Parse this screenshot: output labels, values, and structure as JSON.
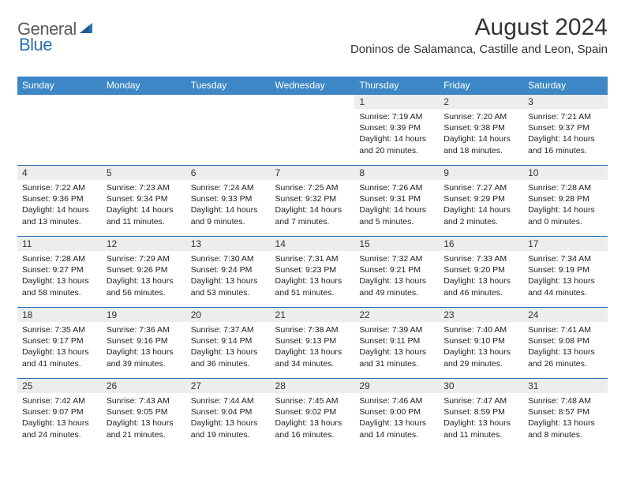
{
  "logo": {
    "text1": "General",
    "text2": "Blue"
  },
  "title": "August 2024",
  "location": "Doninos de Salamanca, Castille and Leon, Spain",
  "colors": {
    "header_bg": "#3d87c7",
    "header_text": "#ffffff",
    "daynum_bg": "#eceded",
    "border": "#2a6fb0",
    "logo_gray": "#5a5a5a",
    "logo_blue": "#2a6fb0"
  },
  "weekdays": [
    "Sunday",
    "Monday",
    "Tuesday",
    "Wednesday",
    "Thursday",
    "Friday",
    "Saturday"
  ],
  "weeks": [
    [
      null,
      null,
      null,
      null,
      {
        "n": "1",
        "sr": "7:19 AM",
        "ss": "9:39 PM",
        "dl": "14 hours and 20 minutes."
      },
      {
        "n": "2",
        "sr": "7:20 AM",
        "ss": "9:38 PM",
        "dl": "14 hours and 18 minutes."
      },
      {
        "n": "3",
        "sr": "7:21 AM",
        "ss": "9:37 PM",
        "dl": "14 hours and 16 minutes."
      }
    ],
    [
      {
        "n": "4",
        "sr": "7:22 AM",
        "ss": "9:36 PM",
        "dl": "14 hours and 13 minutes."
      },
      {
        "n": "5",
        "sr": "7:23 AM",
        "ss": "9:34 PM",
        "dl": "14 hours and 11 minutes."
      },
      {
        "n": "6",
        "sr": "7:24 AM",
        "ss": "9:33 PM",
        "dl": "14 hours and 9 minutes."
      },
      {
        "n": "7",
        "sr": "7:25 AM",
        "ss": "9:32 PM",
        "dl": "14 hours and 7 minutes."
      },
      {
        "n": "8",
        "sr": "7:26 AM",
        "ss": "9:31 PM",
        "dl": "14 hours and 5 minutes."
      },
      {
        "n": "9",
        "sr": "7:27 AM",
        "ss": "9:29 PM",
        "dl": "14 hours and 2 minutes."
      },
      {
        "n": "10",
        "sr": "7:28 AM",
        "ss": "9:28 PM",
        "dl": "14 hours and 0 minutes."
      }
    ],
    [
      {
        "n": "11",
        "sr": "7:28 AM",
        "ss": "9:27 PM",
        "dl": "13 hours and 58 minutes."
      },
      {
        "n": "12",
        "sr": "7:29 AM",
        "ss": "9:26 PM",
        "dl": "13 hours and 56 minutes."
      },
      {
        "n": "13",
        "sr": "7:30 AM",
        "ss": "9:24 PM",
        "dl": "13 hours and 53 minutes."
      },
      {
        "n": "14",
        "sr": "7:31 AM",
        "ss": "9:23 PM",
        "dl": "13 hours and 51 minutes."
      },
      {
        "n": "15",
        "sr": "7:32 AM",
        "ss": "9:21 PM",
        "dl": "13 hours and 49 minutes."
      },
      {
        "n": "16",
        "sr": "7:33 AM",
        "ss": "9:20 PM",
        "dl": "13 hours and 46 minutes."
      },
      {
        "n": "17",
        "sr": "7:34 AM",
        "ss": "9:19 PM",
        "dl": "13 hours and 44 minutes."
      }
    ],
    [
      {
        "n": "18",
        "sr": "7:35 AM",
        "ss": "9:17 PM",
        "dl": "13 hours and 41 minutes."
      },
      {
        "n": "19",
        "sr": "7:36 AM",
        "ss": "9:16 PM",
        "dl": "13 hours and 39 minutes."
      },
      {
        "n": "20",
        "sr": "7:37 AM",
        "ss": "9:14 PM",
        "dl": "13 hours and 36 minutes."
      },
      {
        "n": "21",
        "sr": "7:38 AM",
        "ss": "9:13 PM",
        "dl": "13 hours and 34 minutes."
      },
      {
        "n": "22",
        "sr": "7:39 AM",
        "ss": "9:11 PM",
        "dl": "13 hours and 31 minutes."
      },
      {
        "n": "23",
        "sr": "7:40 AM",
        "ss": "9:10 PM",
        "dl": "13 hours and 29 minutes."
      },
      {
        "n": "24",
        "sr": "7:41 AM",
        "ss": "9:08 PM",
        "dl": "13 hours and 26 minutes."
      }
    ],
    [
      {
        "n": "25",
        "sr": "7:42 AM",
        "ss": "9:07 PM",
        "dl": "13 hours and 24 minutes."
      },
      {
        "n": "26",
        "sr": "7:43 AM",
        "ss": "9:05 PM",
        "dl": "13 hours and 21 minutes."
      },
      {
        "n": "27",
        "sr": "7:44 AM",
        "ss": "9:04 PM",
        "dl": "13 hours and 19 minutes."
      },
      {
        "n": "28",
        "sr": "7:45 AM",
        "ss": "9:02 PM",
        "dl": "13 hours and 16 minutes."
      },
      {
        "n": "29",
        "sr": "7:46 AM",
        "ss": "9:00 PM",
        "dl": "13 hours and 14 minutes."
      },
      {
        "n": "30",
        "sr": "7:47 AM",
        "ss": "8:59 PM",
        "dl": "13 hours and 11 minutes."
      },
      {
        "n": "31",
        "sr": "7:48 AM",
        "ss": "8:57 PM",
        "dl": "13 hours and 8 minutes."
      }
    ]
  ],
  "labels": {
    "sunrise": "Sunrise:",
    "sunset": "Sunset:",
    "daylight": "Daylight:"
  }
}
